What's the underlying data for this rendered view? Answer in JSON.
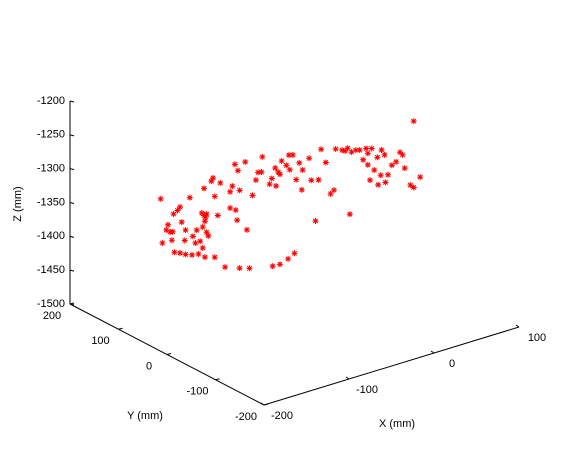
{
  "chart_data": {
    "type": "scatter3d",
    "xlabel": "X (mm)",
    "ylabel": "Y (mm)",
    "zlabel": "Z (mm)",
    "color": "#ff0000",
    "marker": "*",
    "xlim": [
      -200,
      100
    ],
    "ylim": [
      -200,
      200
    ],
    "zlim": [
      -1500,
      -1200
    ],
    "xticks": [
      -200,
      -100,
      0,
      100
    ],
    "yticks": [
      -200,
      -100,
      0,
      100,
      200
    ],
    "zticks": [
      -1500,
      -1450,
      -1400,
      -1350,
      -1300,
      -1250,
      -1200
    ],
    "x": [
      -196,
      -194,
      -190,
      -186,
      -188,
      -184,
      -182,
      -178,
      -175,
      -181,
      -175,
      -169,
      -162,
      -155,
      -148,
      -137,
      -126,
      -110,
      -99,
      -74,
      -66,
      -57,
      -50,
      -183,
      -173,
      -169,
      -170,
      -161,
      -157,
      -158,
      -153,
      -150,
      -164,
      -149,
      -148,
      -150,
      -146,
      -144,
      -141,
      -139,
      -131,
      -137,
      -134,
      -151,
      -149,
      -146,
      -147,
      -120,
      -118,
      -120,
      -114,
      -113,
      -110,
      -112,
      -115,
      -104,
      -102,
      -96,
      -92,
      -90,
      -85,
      -86,
      -77,
      -75,
      -71,
      -68,
      -70,
      -66,
      -64,
      -59,
      -56,
      -55,
      -52,
      -48,
      -45,
      -41,
      -32,
      -24,
      -42,
      -34,
      -27,
      -16,
      -11,
      -7,
      -5,
      2,
      5,
      8,
      12,
      17,
      21,
      28,
      34,
      40,
      30,
      37,
      41,
      32,
      45,
      48,
      56,
      52,
      61,
      65,
      68,
      70,
      76,
      80,
      87,
      80,
      10,
      -21,
      30,
      25,
      44,
      49
    ],
    "y": [
      20,
      20,
      19,
      18,
      19,
      18,
      18,
      17,
      17,
      18,
      17,
      16,
      15,
      14,
      13,
      12,
      10,
      8,
      7,
      3,
      2,
      1,
      0,
      18,
      17,
      16,
      16,
      15,
      14,
      15,
      14,
      14,
      16,
      13,
      13,
      14,
      13,
      13,
      12,
      12,
      11,
      12,
      11,
      14,
      13,
      13,
      13,
      10,
      9,
      10,
      9,
      8,
      8,
      8,
      9,
      7,
      7,
      6,
      6,
      5,
      5,
      5,
      4,
      3,
      3,
      2,
      3,
      2,
      2,
      1,
      1,
      1,
      0,
      0,
      -1,
      -1,
      -3,
      -4,
      -1,
      -2,
      -3,
      -5,
      -6,
      -6,
      -6,
      -7,
      -8,
      -8,
      -9,
      -9,
      -10,
      -11,
      -12,
      -13,
      -11,
      -12,
      -13,
      -12,
      -13,
      -14,
      -15,
      -14,
      -15,
      -16,
      -16,
      -17,
      -18,
      -18,
      -19,
      -18,
      -9,
      -4,
      -11,
      -10,
      -13,
      -14
    ],
    "z": [
      -1279,
      -1345,
      -1327,
      -1331,
      -1320,
      -1344,
      -1306,
      -1302,
      -1298,
      -1363,
      -1366,
      -1370,
      -1373,
      -1374,
      -1381,
      -1385,
      -1403,
      -1410,
      -1414,
      -1419,
      -1419,
      -1414,
      -1408,
      -1332,
      -1321,
      -1334,
      -1349,
      -1346,
      -1338,
      -1357,
      -1356,
      -1367,
      -1288,
      -1279,
      -1328,
      -1336,
      -1345,
      -1351,
      -1271,
      -1267,
      -1277,
      -1295,
      -1324,
      -1315,
      -1319,
      -1318,
      -1322,
      -1294,
      -1286,
      -1318,
      -1323,
      -1338,
      -1295,
      -1265,
      -1255,
      -1255,
      -1356,
      -1307,
      -1286,
      -1275,
      -1254,
      -1276,
      -1297,
      -1289,
      -1275,
      -1282,
      -1302,
      -1286,
      -1267,
      -1275,
      -1261,
      -1283,
      -1262,
      -1300,
      -1276,
      -1288,
      -1306,
      -1308,
      -1317,
      -1273,
      -1368,
      -1285,
      -1333,
      -1329,
      -1269,
      -1273,
      -1275,
      -1272,
      -1279,
      -1278,
      -1279,
      -1279,
      -1281,
      -1296,
      -1304,
      -1314,
      -1337,
      -1327,
      -1287,
      -1295,
      -1313,
      -1326,
      -1310,
      -1297,
      -1302,
      -1322,
      -1349,
      -1354,
      -1341,
      -1256,
      -1370,
      -1264,
      -1287,
      -1295,
      -1324,
      -1336
    ]
  }
}
